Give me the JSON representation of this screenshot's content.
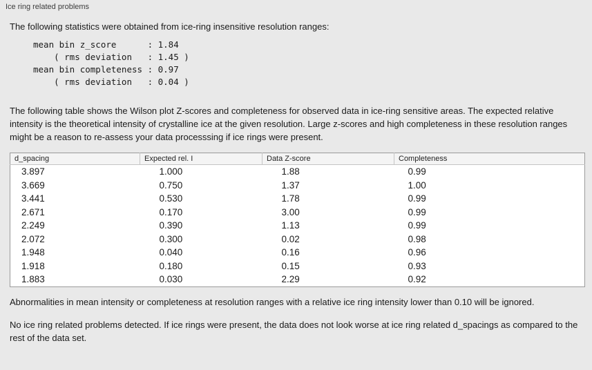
{
  "panel": {
    "title": "Ice ring related problems"
  },
  "sections": {
    "intro": "The following statistics were obtained from ice-ring insensitive resolution ranges:",
    "stats_block": "mean bin z_score      : 1.84\n    ( rms deviation   : 1.45 )\nmean bin completeness : 0.97\n    ( rms deviation   : 0.04 )",
    "table_description": "The following table shows the Wilson plot Z-scores and completeness for observed data in ice-ring sensitive areas. The expected relative intensity is the theoretical intensity of crystalline ice at the given resolution. Large z-scores and high completeness in these resolution ranges might be a reason to re-assess your data processsing if ice rings were present.",
    "ignore_note": "Abnormalities in mean intensity or completeness at resolution ranges with a relative ice ring intensity lower than 0.10 will be ignored.",
    "conclusion": "No ice ring related problems detected. If ice rings were present, the data does not look worse at ice ring related d_spacings as compared to the rest of the data set."
  },
  "table": {
    "headers": [
      "d_spacing",
      "Expected rel. I",
      "Data Z-score",
      "Completeness"
    ],
    "rows": [
      [
        "3.897",
        "1.000",
        "1.88",
        "0.99"
      ],
      [
        "3.669",
        "0.750",
        "1.37",
        "1.00"
      ],
      [
        "3.441",
        "0.530",
        "1.78",
        "0.99"
      ],
      [
        "2.671",
        "0.170",
        "3.00",
        "0.99"
      ],
      [
        "2.249",
        "0.390",
        "1.13",
        "0.99"
      ],
      [
        "2.072",
        "0.300",
        "0.02",
        "0.98"
      ],
      [
        "1.948",
        "0.040",
        "0.16",
        "0.96"
      ],
      [
        "1.918",
        "0.180",
        "0.15",
        "0.93"
      ],
      [
        "1.883",
        "0.030",
        "2.29",
        "0.92"
      ]
    ]
  },
  "colors": {
    "background": "#e9e9e9",
    "table_background": "#ffffff",
    "table_border": "#9a9a9a",
    "header_background": "#f4f4f4",
    "header_divider": "#c4c4c4",
    "text": "#1a1a1a"
  }
}
